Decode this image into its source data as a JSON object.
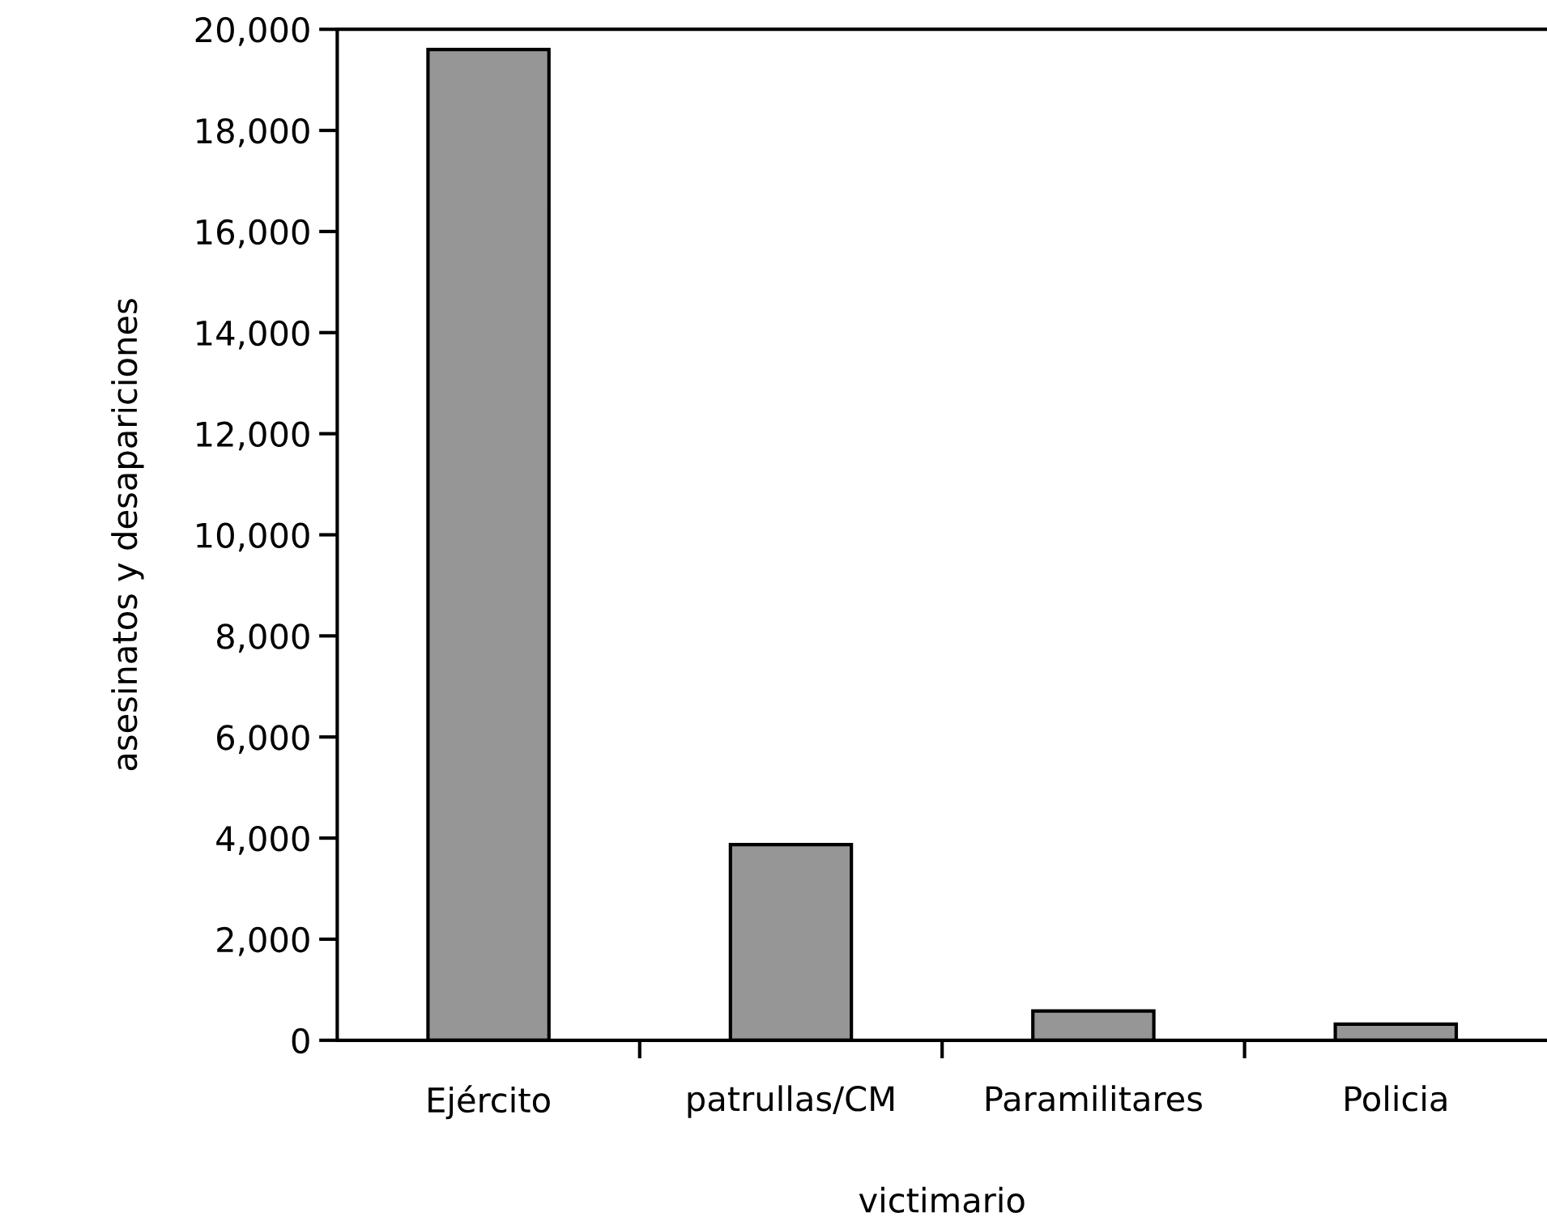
{
  "chart_data": {
    "type": "bar",
    "xlabel": "victimario",
    "ylabel": "asesinatos y desapariciones",
    "categories": [
      "Ejército",
      "patrullas/CM",
      "Paramilitares",
      "Policia"
    ],
    "series": [
      {
        "color": "#969696",
        "values": [
          19600,
          3870,
          580,
          320
        ]
      }
    ],
    "ylim": [
      0,
      20000
    ],
    "yticks": [
      {
        "value": 0,
        "label": "0"
      },
      {
        "value": 2000,
        "label": "2,000"
      },
      {
        "value": 4000,
        "label": "4,000"
      },
      {
        "value": 6000,
        "label": "6,000"
      },
      {
        "value": 8000,
        "label": "8,000"
      },
      {
        "value": 10000,
        "label": "10,000"
      },
      {
        "value": 12000,
        "label": "12,000"
      },
      {
        "value": 14000,
        "label": "14,000"
      },
      {
        "value": 16000,
        "label": "16,000"
      },
      {
        "value": 18000,
        "label": "18,000"
      },
      {
        "value": 20000,
        "label": "20,000"
      }
    ],
    "grid": false,
    "legend": false
  }
}
